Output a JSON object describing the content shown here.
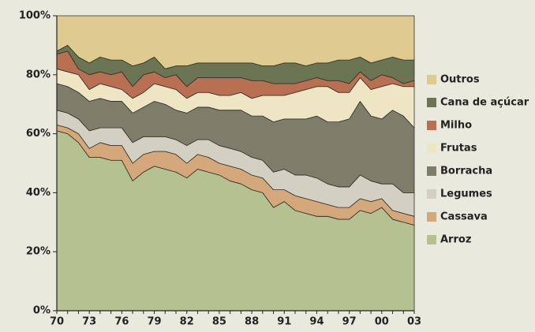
{
  "chart_data": {
    "type": "stacked-area",
    "categories": [
      "70",
      null,
      null,
      "73",
      null,
      null,
      "76",
      null,
      null,
      "79",
      null,
      null,
      "82",
      null,
      null,
      "85",
      null,
      null,
      "88",
      null,
      null,
      "91",
      null,
      null,
      "94",
      null,
      null,
      "97",
      null,
      null,
      "00",
      null,
      null,
      "03"
    ],
    "series": [
      {
        "name": "Arroz",
        "color": "#b5c190",
        "values": [
          61,
          60,
          57,
          52,
          52,
          51,
          51,
          44,
          47,
          49,
          48,
          47,
          45,
          48,
          47,
          46,
          44,
          43,
          41,
          40,
          35,
          37,
          34,
          33,
          32,
          32,
          31,
          31,
          34,
          33,
          35,
          31,
          30,
          29
        ]
      },
      {
        "name": "Cassava",
        "color": "#d5a87b",
        "values": [
          2,
          2,
          3,
          3,
          5,
          5,
          5,
          6,
          6,
          5,
          6,
          6,
          5,
          5,
          5,
          4,
          5,
          5,
          5,
          5,
          6,
          4,
          5,
          5,
          5,
          4,
          4,
          4,
          4,
          4,
          3,
          3,
          3,
          3
        ]
      },
      {
        "name": "Legumes",
        "color": "#d4cfc3",
        "values": [
          5,
          5,
          5,
          6,
          5,
          6,
          6,
          7,
          6,
          5,
          5,
          5,
          6,
          5,
          6,
          6,
          6,
          6,
          6,
          6,
          6,
          7,
          7,
          8,
          8,
          7,
          7,
          7,
          8,
          7,
          5,
          9,
          7,
          8
        ]
      },
      {
        "name": "Borracha",
        "color": "#7e7d69",
        "values": [
          9,
          9,
          9,
          10,
          10,
          9,
          9,
          10,
          10,
          12,
          11,
          10,
          11,
          11,
          11,
          12,
          13,
          14,
          14,
          15,
          17,
          17,
          19,
          19,
          21,
          21,
          22,
          23,
          25,
          22,
          22,
          25,
          26,
          22
        ]
      },
      {
        "name": "Frutas",
        "color": "#eee5c5",
        "values": [
          5,
          5,
          6,
          4,
          5,
          5,
          4,
          5,
          5,
          6,
          6,
          7,
          5,
          5,
          5,
          5,
          5,
          6,
          6,
          7,
          9,
          8,
          9,
          10,
          10,
          12,
          10,
          9,
          8,
          9,
          11,
          9,
          10,
          14
        ]
      },
      {
        "name": "Milho",
        "color": "#b96f51",
        "values": [
          5,
          7,
          2,
          5,
          4,
          4,
          6,
          4,
          6,
          4,
          3,
          5,
          4,
          5,
          5,
          6,
          6,
          5,
          6,
          5,
          4,
          4,
          3,
          3,
          3,
          2,
          4,
          3,
          2,
          3,
          4,
          2,
          1,
          2
        ]
      },
      {
        "name": "Cana de açúcar",
        "color": "#6b7553",
        "values": [
          1,
          2,
          4,
          4,
          5,
          5,
          4,
          7,
          4,
          5,
          3,
          3,
          7,
          5,
          5,
          5,
          5,
          5,
          6,
          5,
          6,
          7,
          7,
          5,
          5,
          6,
          7,
          8,
          5,
          6,
          5,
          7,
          8,
          7
        ]
      },
      {
        "name": "Outros",
        "color": "#dfcb8f",
        "values": [
          12,
          10,
          14,
          16,
          14,
          15,
          15,
          17,
          16,
          14,
          18,
          17,
          17,
          16,
          16,
          16,
          16,
          16,
          16,
          17,
          17,
          16,
          16,
          17,
          16,
          16,
          15,
          15,
          14,
          16,
          15,
          14,
          15,
          15
        ]
      }
    ],
    "ylim": [
      0,
      100
    ],
    "yticks": [
      {
        "value": 0,
        "label": "0%"
      },
      {
        "value": 20,
        "label": "20%"
      },
      {
        "value": 40,
        "label": "40%"
      },
      {
        "value": 60,
        "label": "60%"
      },
      {
        "value": 80,
        "label": "80%"
      },
      {
        "value": 100,
        "label": "100%"
      }
    ],
    "legend": "right"
  }
}
